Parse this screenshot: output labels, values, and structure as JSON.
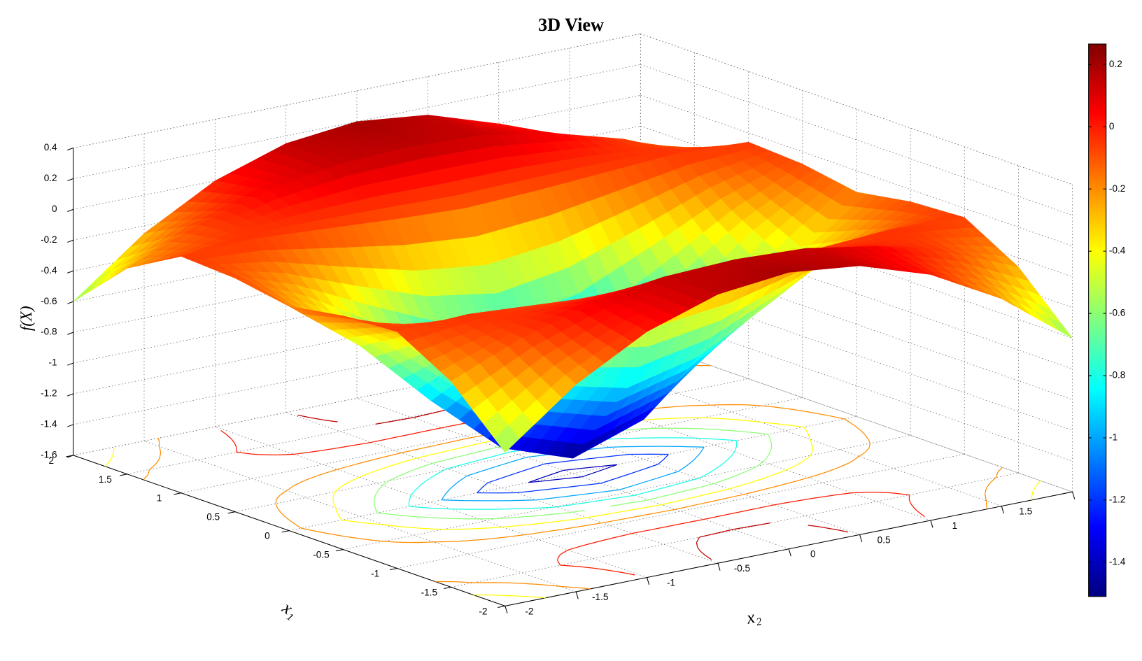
{
  "chart_data": {
    "type": "surface",
    "title": "3D View",
    "xlabel": "x₁",
    "ylabel": "x₂",
    "zlabel": "f(X)",
    "x1": [
      -2,
      -1.5,
      -1,
      -0.5,
      0,
      0.5,
      1,
      1.5,
      2
    ],
    "x2": [
      -2,
      -1.5,
      -1,
      -0.5,
      0,
      0.5,
      1,
      1.5,
      2
    ],
    "z": [
      [
        -0.6,
        -0.25,
        0.0,
        0.15,
        0.2,
        0.15,
        0.0,
        -0.25,
        -0.6
      ],
      [
        -0.26,
        -0.07,
        0.06,
        0.14,
        0.16,
        0.14,
        0.06,
        -0.07,
        -0.26
      ],
      [
        -0.06,
        -0.04,
        -0.07,
        -0.1,
        -0.12,
        -0.1,
        -0.07,
        -0.04,
        -0.06
      ],
      [
        -0.08,
        -0.29,
        -0.56,
        -0.81,
        -0.92,
        -0.81,
        -0.56,
        -0.29,
        -0.08
      ],
      [
        -0.14,
        -0.49,
        -0.94,
        -1.34,
        -1.5,
        -1.34,
        -0.94,
        -0.49,
        -0.14
      ],
      [
        -0.08,
        -0.29,
        -0.56,
        -0.81,
        -0.92,
        -0.81,
        -0.56,
        -0.29,
        -0.08
      ],
      [
        -0.06,
        -0.04,
        -0.07,
        -0.1,
        -0.12,
        -0.1,
        -0.07,
        -0.04,
        -0.06
      ],
      [
        -0.26,
        -0.07,
        0.06,
        0.14,
        0.16,
        0.14,
        0.06,
        -0.07,
        -0.26
      ],
      [
        -0.6,
        -0.25,
        0.0,
        0.15,
        0.2,
        0.15,
        0.0,
        -0.25,
        -0.6
      ]
    ],
    "xlim": [
      -2,
      2
    ],
    "ylim": [
      -2,
      2
    ],
    "zlim": [
      -1.6,
      0.4
    ],
    "xticks": [
      -2,
      -1.5,
      -1,
      -0.5,
      0,
      0.5,
      1,
      1.5,
      2
    ],
    "yticks": [
      -2,
      -1.5,
      -1,
      -0.5,
      0,
      0.5,
      1,
      1.5,
      2
    ],
    "zticks": [
      -1.6,
      -1.4,
      -1.2,
      -1,
      -0.8,
      -0.6,
      -0.4,
      -0.2,
      0,
      0.2,
      0.4
    ],
    "colormap": "jet",
    "clim": [
      -1.51,
      0.266
    ],
    "cticks": [
      -1.4,
      -1.2,
      -1,
      -0.8,
      -0.6,
      -0.4,
      -0.2,
      0,
      0.2
    ],
    "contour_levels": [
      -1.4,
      -1.2,
      -1,
      -0.8,
      -0.6,
      -0.4,
      -0.2,
      0,
      0.15
    ],
    "grid": true
  }
}
